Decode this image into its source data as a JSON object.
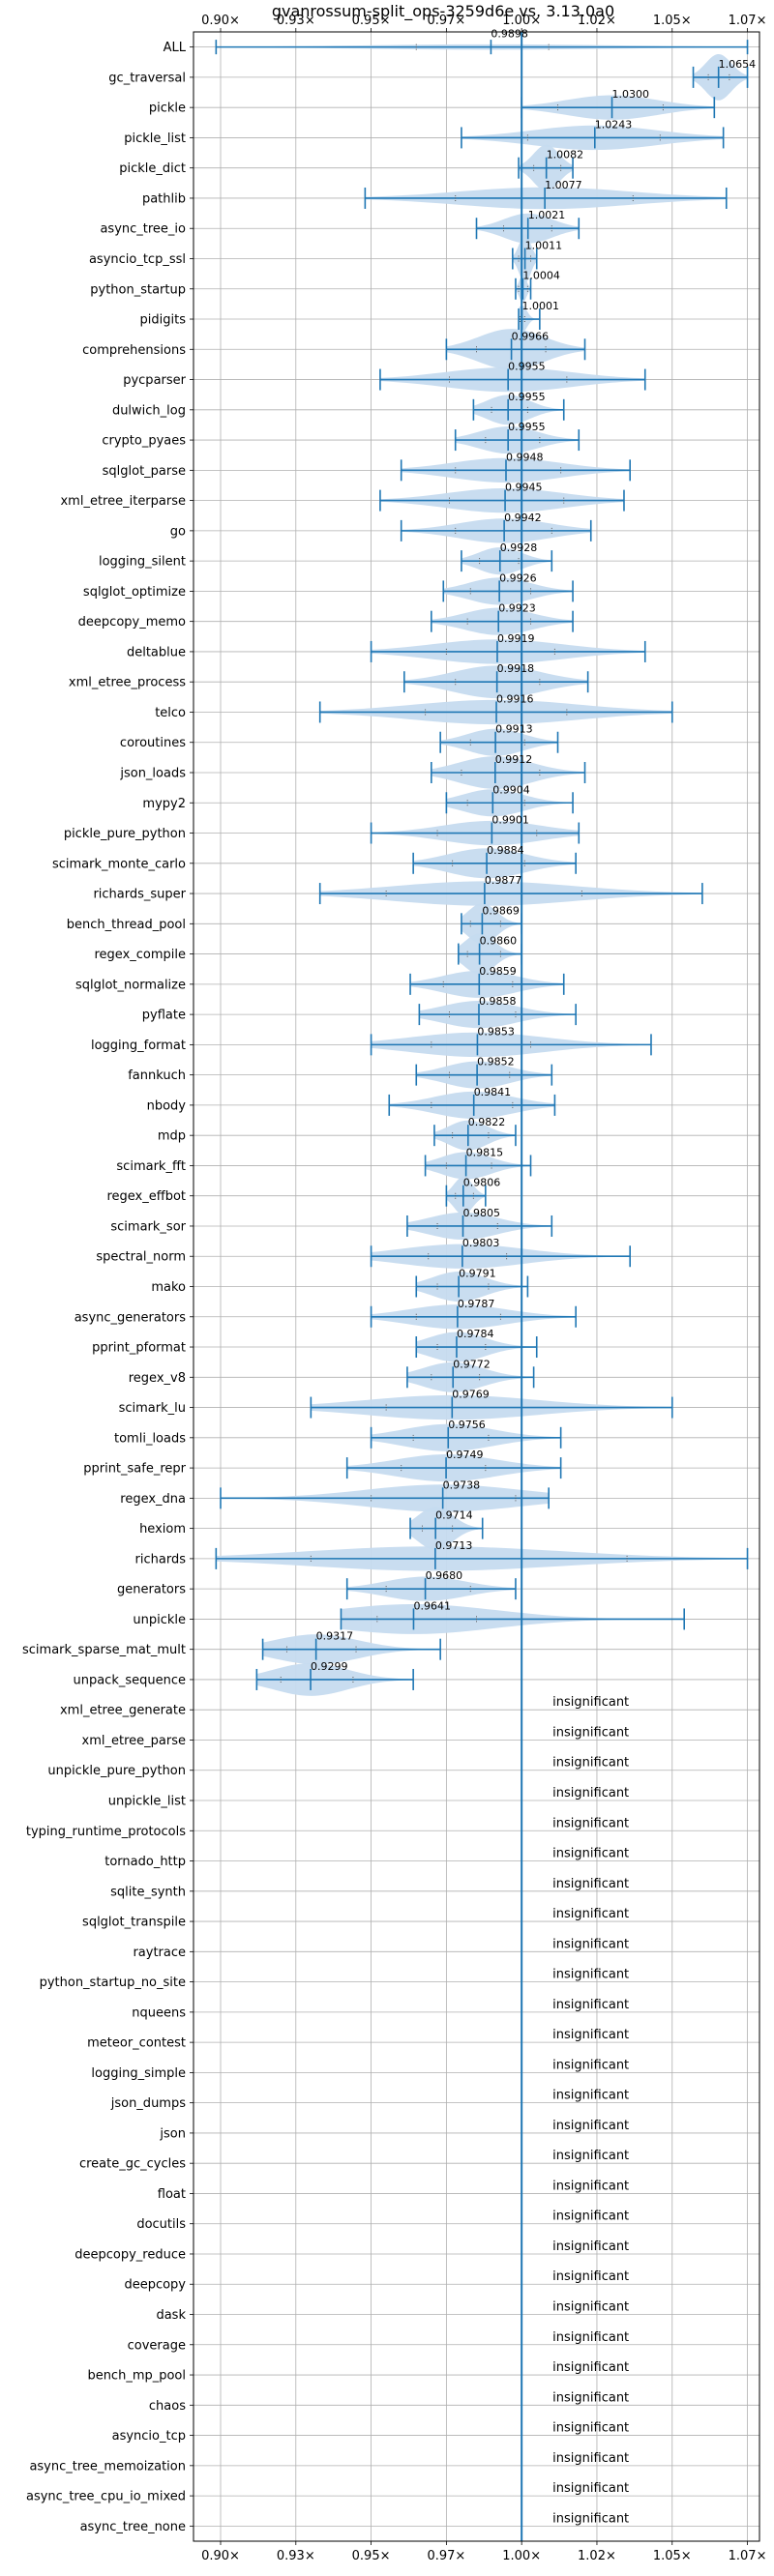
{
  "chart_data": {
    "type": "violin",
    "title": "gvanrossum-split_ops-3259d6e vs. 3.13.0a0",
    "xlim": [
      0.891,
      1.079
    ],
    "x_ticks": [
      0.9,
      0.925,
      0.95,
      0.975,
      1.0,
      1.025,
      1.05,
      1.075
    ],
    "x_tick_labels": [
      "0.90×",
      "0.93×",
      "0.95×",
      "0.97×",
      "1.00×",
      "1.02×",
      "1.05×",
      "1.07×"
    ],
    "grid": true,
    "accent_color": "#1f77b4",
    "violin_fill": "#c6dbef",
    "reference_x": 1.0,
    "benchmarks": [
      {
        "name": "ALL",
        "mean": 0.9898,
        "label": "0.9898",
        "min": 0.8985,
        "max": 1.075,
        "q1": 0.965,
        "q3": 1.009,
        "width": 0.1,
        "significant": true
      },
      {
        "name": "gc_traversal",
        "mean": 1.0654,
        "label": "1.0654",
        "min": 1.057,
        "max": 1.075,
        "q1": 1.062,
        "q3": 1.069,
        "width": 0.85,
        "significant": true
      },
      {
        "name": "pickle",
        "mean": 1.03,
        "label": "1.0300",
        "min": 1.0,
        "max": 1.064,
        "q1": 1.012,
        "q3": 1.047,
        "width": 0.45,
        "significant": true
      },
      {
        "name": "pickle_list",
        "mean": 1.0243,
        "label": "1.0243",
        "min": 0.98,
        "max": 1.067,
        "q1": 1.002,
        "q3": 1.046,
        "width": 0.45,
        "significant": true
      },
      {
        "name": "pickle_dict",
        "mean": 1.0082,
        "label": "1.0082",
        "min": 0.999,
        "max": 1.017,
        "q1": 1.004,
        "q3": 1.013,
        "width": 0.85,
        "significant": true
      },
      {
        "name": "pathlib",
        "mean": 1.0077,
        "label": "1.0077",
        "min": 0.948,
        "max": 1.068,
        "q1": 0.978,
        "q3": 1.037,
        "width": 0.4,
        "significant": true
      },
      {
        "name": "async_tree_io",
        "mean": 1.0021,
        "label": "1.0021",
        "min": 0.985,
        "max": 1.019,
        "q1": 0.994,
        "q3": 1.01,
        "width": 0.55,
        "significant": true
      },
      {
        "name": "asyncio_tcp_ssl",
        "mean": 1.0011,
        "label": "1.0011",
        "min": 0.997,
        "max": 1.005,
        "q1": 0.999,
        "q3": 1.003,
        "width": 0.9,
        "significant": true
      },
      {
        "name": "python_startup",
        "mean": 1.0004,
        "label": "1.0004",
        "min": 0.998,
        "max": 1.003,
        "q1": 0.999,
        "q3": 1.002,
        "width": 0.5,
        "significant": true
      },
      {
        "name": "pidigits",
        "mean": 1.0001,
        "label": "1.0001",
        "min": 0.999,
        "max": 1.006,
        "q1": 0.9995,
        "q3": 1.001,
        "width": 0.5,
        "significant": true
      },
      {
        "name": "comprehensions",
        "mean": 0.9966,
        "label": "0.9966",
        "min": 0.975,
        "max": 1.021,
        "q1": 0.985,
        "q3": 1.008,
        "width": 0.75,
        "significant": true
      },
      {
        "name": "pycparser",
        "mean": 0.9955,
        "label": "0.9955",
        "min": 0.953,
        "max": 1.041,
        "q1": 0.976,
        "q3": 1.015,
        "width": 0.45,
        "significant": true
      },
      {
        "name": "dulwich_log",
        "mean": 0.9955,
        "label": "0.9955",
        "min": 0.984,
        "max": 1.014,
        "q1": 0.99,
        "q3": 1.002,
        "width": 0.55,
        "significant": true
      },
      {
        "name": "crypto_pyaes",
        "mean": 0.9955,
        "label": "0.9955",
        "min": 0.978,
        "max": 1.019,
        "q1": 0.988,
        "q3": 1.006,
        "width": 0.5,
        "significant": true
      },
      {
        "name": "sqlglot_parse",
        "mean": 0.9948,
        "label": "0.9948",
        "min": 0.96,
        "max": 1.036,
        "q1": 0.978,
        "q3": 1.013,
        "width": 0.45,
        "significant": true
      },
      {
        "name": "xml_etree_iterparse",
        "mean": 0.9945,
        "label": "0.9945",
        "min": 0.953,
        "max": 1.034,
        "q1": 0.976,
        "q3": 1.014,
        "width": 0.45,
        "significant": true
      },
      {
        "name": "go",
        "mean": 0.9942,
        "label": "0.9942",
        "min": 0.96,
        "max": 1.023,
        "q1": 0.978,
        "q3": 1.01,
        "width": 0.45,
        "significant": true
      },
      {
        "name": "logging_silent",
        "mean": 0.9928,
        "label": "0.9928",
        "min": 0.98,
        "max": 1.01,
        "q1": 0.986,
        "q3": 0.999,
        "width": 0.5,
        "significant": true
      },
      {
        "name": "sqlglot_optimize",
        "mean": 0.9926,
        "label": "0.9926",
        "min": 0.974,
        "max": 1.017,
        "q1": 0.983,
        "q3": 1.003,
        "width": 0.5,
        "significant": true
      },
      {
        "name": "deepcopy_memo",
        "mean": 0.9923,
        "label": "0.9923",
        "min": 0.97,
        "max": 1.017,
        "q1": 0.982,
        "q3": 1.003,
        "width": 0.5,
        "significant": true
      },
      {
        "name": "deltablue",
        "mean": 0.9919,
        "label": "0.9919",
        "min": 0.95,
        "max": 1.041,
        "q1": 0.975,
        "q3": 1.011,
        "width": 0.45,
        "significant": true
      },
      {
        "name": "xml_etree_process",
        "mean": 0.9918,
        "label": "0.9918",
        "min": 0.961,
        "max": 1.022,
        "q1": 0.978,
        "q3": 1.006,
        "width": 0.6,
        "significant": true
      },
      {
        "name": "telco",
        "mean": 0.9916,
        "label": "0.9916",
        "min": 0.933,
        "max": 1.05,
        "q1": 0.968,
        "q3": 1.015,
        "width": 0.45,
        "significant": true
      },
      {
        "name": "coroutines",
        "mean": 0.9913,
        "label": "0.9913",
        "min": 0.973,
        "max": 1.012,
        "q1": 0.983,
        "q3": 1.001,
        "width": 0.5,
        "significant": true
      },
      {
        "name": "json_loads",
        "mean": 0.9912,
        "label": "0.9912",
        "min": 0.97,
        "max": 1.021,
        "q1": 0.98,
        "q3": 1.006,
        "width": 0.6,
        "significant": true
      },
      {
        "name": "mypy2",
        "mean": 0.9904,
        "label": "0.9904",
        "min": 0.975,
        "max": 1.017,
        "q1": 0.982,
        "q3": 1.001,
        "width": 0.5,
        "significant": true
      },
      {
        "name": "pickle_pure_python",
        "mean": 0.9901,
        "label": "0.9901",
        "min": 0.95,
        "max": 1.019,
        "q1": 0.972,
        "q3": 1.005,
        "width": 0.45,
        "significant": true
      },
      {
        "name": "scimark_monte_carlo",
        "mean": 0.9884,
        "label": "0.9884",
        "min": 0.964,
        "max": 1.018,
        "q1": 0.977,
        "q3": 1.001,
        "width": 0.55,
        "significant": true
      },
      {
        "name": "richards_super",
        "mean": 0.9877,
        "label": "0.9877",
        "min": 0.933,
        "max": 1.06,
        "q1": 0.955,
        "q3": 1.02,
        "width": 0.45,
        "significant": true
      },
      {
        "name": "bench_thread_pool",
        "mean": 0.9869,
        "label": "0.9869",
        "min": 0.98,
        "max": 1.0,
        "q1": 0.983,
        "q3": 0.993,
        "width": 0.75,
        "significant": true
      },
      {
        "name": "regex_compile",
        "mean": 0.986,
        "label": "0.9860",
        "min": 0.979,
        "max": 1.0,
        "q1": 0.982,
        "q3": 0.993,
        "width": 0.75,
        "significant": true
      },
      {
        "name": "sqlglot_normalize",
        "mean": 0.9859,
        "label": "0.9859",
        "min": 0.963,
        "max": 1.014,
        "q1": 0.974,
        "q3": 0.997,
        "width": 0.5,
        "significant": true
      },
      {
        "name": "pyflate",
        "mean": 0.9858,
        "label": "0.9858",
        "min": 0.966,
        "max": 1.018,
        "q1": 0.976,
        "q3": 0.998,
        "width": 0.5,
        "significant": true
      },
      {
        "name": "logging_format",
        "mean": 0.9853,
        "label": "0.9853",
        "min": 0.95,
        "max": 1.043,
        "q1": 0.97,
        "q3": 1.003,
        "width": 0.45,
        "significant": true
      },
      {
        "name": "fannkuch",
        "mean": 0.9852,
        "label": "0.9852",
        "min": 0.965,
        "max": 1.01,
        "q1": 0.976,
        "q3": 0.996,
        "width": 0.5,
        "significant": true
      },
      {
        "name": "nbody",
        "mean": 0.9841,
        "label": "0.9841",
        "min": 0.956,
        "max": 1.011,
        "q1": 0.97,
        "q3": 0.997,
        "width": 0.5,
        "significant": true
      },
      {
        "name": "mdp",
        "mean": 0.9822,
        "label": "0.9822",
        "min": 0.971,
        "max": 0.998,
        "q1": 0.977,
        "q3": 0.989,
        "width": 0.55,
        "significant": true
      },
      {
        "name": "scimark_fft",
        "mean": 0.9815,
        "label": "0.9815",
        "min": 0.968,
        "max": 1.003,
        "q1": 0.975,
        "q3": 0.99,
        "width": 0.5,
        "significant": true
      },
      {
        "name": "regex_effbot",
        "mean": 0.9806,
        "label": "0.9806",
        "min": 0.975,
        "max": 0.988,
        "q1": 0.978,
        "q3": 0.984,
        "width": 0.7,
        "significant": true
      },
      {
        "name": "scimark_sor",
        "mean": 0.9805,
        "label": "0.9805",
        "min": 0.962,
        "max": 1.01,
        "q1": 0.972,
        "q3": 0.992,
        "width": 0.5,
        "significant": true
      },
      {
        "name": "spectral_norm",
        "mean": 0.9803,
        "label": "0.9803",
        "min": 0.95,
        "max": 1.036,
        "q1": 0.969,
        "q3": 0.995,
        "width": 0.45,
        "significant": true
      },
      {
        "name": "mako",
        "mean": 0.9791,
        "label": "0.9791",
        "min": 0.965,
        "max": 1.002,
        "q1": 0.972,
        "q3": 0.989,
        "width": 0.55,
        "significant": true
      },
      {
        "name": "async_generators",
        "mean": 0.9787,
        "label": "0.9787",
        "min": 0.95,
        "max": 1.018,
        "q1": 0.965,
        "q3": 0.993,
        "width": 0.45,
        "significant": true
      },
      {
        "name": "pprint_pformat",
        "mean": 0.9784,
        "label": "0.9784",
        "min": 0.965,
        "max": 1.005,
        "q1": 0.972,
        "q3": 0.988,
        "width": 0.55,
        "significant": true
      },
      {
        "name": "regex_v8",
        "mean": 0.9772,
        "label": "0.9772",
        "min": 0.962,
        "max": 1.004,
        "q1": 0.97,
        "q3": 0.986,
        "width": 0.55,
        "significant": true
      },
      {
        "name": "scimark_lu",
        "mean": 0.9769,
        "label": "0.9769",
        "min": 0.93,
        "max": 1.05,
        "q1": 0.955,
        "q3": 1.0,
        "width": 0.45,
        "significant": true
      },
      {
        "name": "tomli_loads",
        "mean": 0.9756,
        "label": "0.9756",
        "min": 0.95,
        "max": 1.013,
        "q1": 0.964,
        "q3": 0.989,
        "width": 0.5,
        "significant": true
      },
      {
        "name": "pprint_safe_repr",
        "mean": 0.9749,
        "label": "0.9749",
        "min": 0.942,
        "max": 1.013,
        "q1": 0.96,
        "q3": 0.988,
        "width": 0.5,
        "significant": true
      },
      {
        "name": "regex_dna",
        "mean": 0.9738,
        "label": "0.9738",
        "min": 0.9,
        "max": 1.009,
        "q1": 0.95,
        "q3": 0.998,
        "width": 0.5,
        "significant": true
      },
      {
        "name": "hexiom",
        "mean": 0.9714,
        "label": "0.9714",
        "min": 0.963,
        "max": 0.987,
        "q1": 0.967,
        "q3": 0.977,
        "width": 0.8,
        "significant": true
      },
      {
        "name": "richards",
        "mean": 0.9713,
        "label": "0.9713",
        "min": 0.8985,
        "max": 1.075,
        "q1": 0.93,
        "q3": 1.035,
        "width": 0.45,
        "significant": true
      },
      {
        "name": "generators",
        "mean": 0.968,
        "label": "0.9680",
        "min": 0.942,
        "max": 0.998,
        "q1": 0.955,
        "q3": 0.983,
        "width": 0.45,
        "significant": true
      },
      {
        "name": "unpickle",
        "mean": 0.9641,
        "label": "0.9641",
        "min": 0.94,
        "max": 1.054,
        "q1": 0.952,
        "q3": 0.985,
        "width": 0.55,
        "significant": true
      },
      {
        "name": "scimark_sparse_mat_mult",
        "mean": 0.9317,
        "label": "0.9317",
        "min": 0.914,
        "max": 0.973,
        "q1": 0.922,
        "q3": 0.945,
        "width": 0.55,
        "significant": true
      },
      {
        "name": "unpack_sequence",
        "mean": 0.9299,
        "label": "0.9299",
        "min": 0.912,
        "max": 0.964,
        "q1": 0.92,
        "q3": 0.944,
        "width": 0.6,
        "significant": true
      },
      {
        "name": "xml_etree_generate",
        "label": "insignificant",
        "significant": false
      },
      {
        "name": "xml_etree_parse",
        "label": "insignificant",
        "significant": false
      },
      {
        "name": "unpickle_pure_python",
        "label": "insignificant",
        "significant": false
      },
      {
        "name": "unpickle_list",
        "label": "insignificant",
        "significant": false
      },
      {
        "name": "typing_runtime_protocols",
        "label": "insignificant",
        "significant": false
      },
      {
        "name": "tornado_http",
        "label": "insignificant",
        "significant": false
      },
      {
        "name": "sqlite_synth",
        "label": "insignificant",
        "significant": false
      },
      {
        "name": "sqlglot_transpile",
        "label": "insignificant",
        "significant": false
      },
      {
        "name": "raytrace",
        "label": "insignificant",
        "significant": false
      },
      {
        "name": "python_startup_no_site",
        "label": "insignificant",
        "significant": false
      },
      {
        "name": "nqueens",
        "label": "insignificant",
        "significant": false
      },
      {
        "name": "meteor_contest",
        "label": "insignificant",
        "significant": false
      },
      {
        "name": "logging_simple",
        "label": "insignificant",
        "significant": false
      },
      {
        "name": "json_dumps",
        "label": "insignificant",
        "significant": false
      },
      {
        "name": "json",
        "label": "insignificant",
        "significant": false
      },
      {
        "name": "create_gc_cycles",
        "label": "insignificant",
        "significant": false
      },
      {
        "name": "float",
        "label": "insignificant",
        "significant": false
      },
      {
        "name": "docutils",
        "label": "insignificant",
        "significant": false
      },
      {
        "name": "deepcopy_reduce",
        "label": "insignificant",
        "significant": false
      },
      {
        "name": "deepcopy",
        "label": "insignificant",
        "significant": false
      },
      {
        "name": "dask",
        "label": "insignificant",
        "significant": false
      },
      {
        "name": "coverage",
        "label": "insignificant",
        "significant": false
      },
      {
        "name": "bench_mp_pool",
        "label": "insignificant",
        "significant": false
      },
      {
        "name": "chaos",
        "label": "insignificant",
        "significant": false
      },
      {
        "name": "asyncio_tcp",
        "label": "insignificant",
        "significant": false
      },
      {
        "name": "async_tree_memoization",
        "label": "insignificant",
        "significant": false
      },
      {
        "name": "async_tree_cpu_io_mixed",
        "label": "insignificant",
        "significant": false
      },
      {
        "name": "async_tree_none",
        "label": "insignificant",
        "significant": false
      }
    ]
  }
}
